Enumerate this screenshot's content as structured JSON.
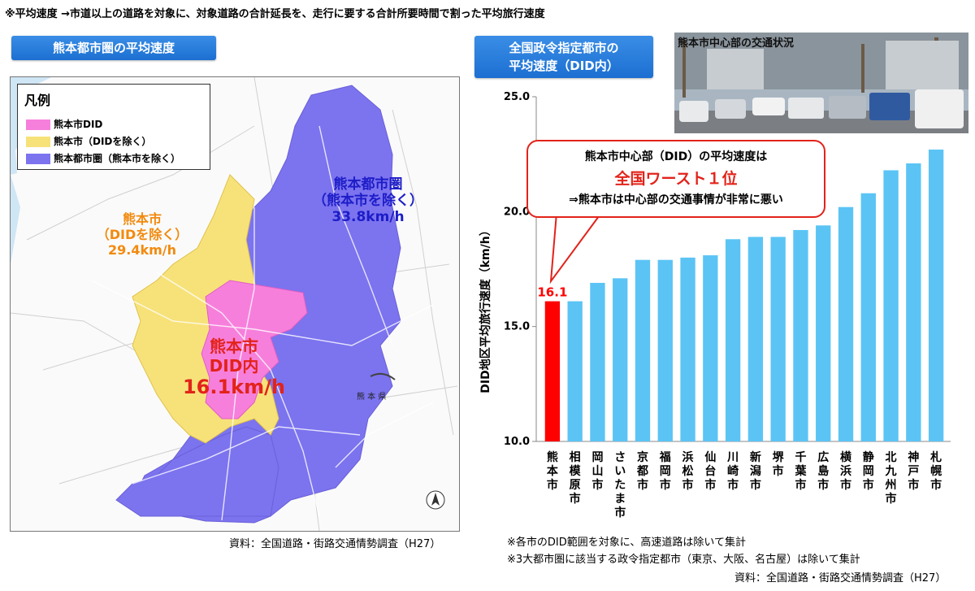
{
  "top_note": "※平均速度 →市道以上の道路を対象に、対象道路の合計延長を、走行に要する合計所要時間で割った平均旅行速度",
  "left_header": "熊本都市圏の平均速度",
  "right_header_line1": "全国政令指定都市の",
  "right_header_line2": "平均速度（DID内）",
  "legend": {
    "title": "凡例",
    "items": [
      {
        "label": "熊本市DID",
        "color": "#f77fdc"
      },
      {
        "label": "熊本市（DIDを除く）",
        "color": "#f7e27a"
      },
      {
        "label": "熊本都市圏（熊本市を除く）",
        "color": "#7c73ef"
      }
    ]
  },
  "map": {
    "metro_label_1": "熊本都市圏",
    "metro_label_2": "（熊本市を除く）",
    "metro_value": "33.8km/h",
    "city_label_1": "熊本市",
    "city_label_2": "（DIDを除く）",
    "city_value": "29.4km/h",
    "did_label_1": "熊本市",
    "did_label_2": "DID内",
    "did_value": "16.1km/h",
    "pref_label": "熊 本 県"
  },
  "left_source": "資料：全国道路・街路交通情勢調査（H27）",
  "photo_caption": "熊本市中心部の交通状況",
  "callout": {
    "line1": "熊本市中心部（DID）の平均速度は",
    "line2": "全国ワースト１位",
    "line3": "⇒熊本市は中心部の交通事情が非常に悪い"
  },
  "footnote_1": "※各市のDID範囲を対象に、高速道路は除いて集計",
  "footnote_2": "※3大都市圏に該当する政令指定都市（東京、大阪、名古屋）は除いて集計",
  "right_source": "資料：全国道路・街路交通情勢調査（H27）",
  "colors": {
    "highlight": "#ff0000",
    "bar": "#5bc4f5",
    "header": "#2079dc"
  },
  "chart_data": {
    "type": "bar",
    "ylabel": "DID地区平均旅行速度（km/h）",
    "ylim": [
      10,
      25
    ],
    "yticks": [
      "10.0",
      "15.0",
      "20.0",
      "25.0"
    ],
    "categories": [
      "熊本市",
      "相模原市",
      "岡山市",
      "さいたま市",
      "京都市",
      "福岡市",
      "浜松市",
      "仙台市",
      "川崎市",
      "新潟市",
      "堺市",
      "千葉市",
      "広島市",
      "横浜市",
      "静岡市",
      "北九州市",
      "神戸市",
      "札幌市"
    ],
    "values": [
      16.1,
      16.1,
      16.9,
      17.1,
      17.9,
      17.9,
      18.0,
      18.1,
      18.8,
      18.9,
      18.9,
      19.2,
      19.4,
      20.2,
      20.8,
      21.8,
      22.1,
      22.7
    ],
    "highlight_index": 0,
    "data_label": "16.1"
  }
}
